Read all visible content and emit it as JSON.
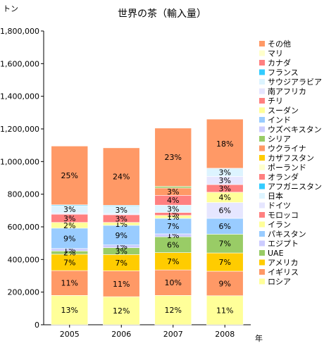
{
  "chart_data": {
    "type": "bar",
    "stacked": true,
    "title": "世界の茶（輸入量）",
    "ylabel": "トン",
    "xlabel": "年",
    "categories": [
      "2005",
      "2006",
      "2007",
      "2008"
    ],
    "ylim": [
      0,
      1800000
    ],
    "yticks": [
      0,
      200000,
      400000,
      600000,
      800000,
      1000000,
      1200000,
      1400000,
      1600000,
      1800000
    ],
    "ytick_labels": [
      "0",
      "200,000",
      "400,000",
      "600,000",
      "800,000",
      "1,000,000",
      "1,200,000",
      "1,400,000",
      "1,600,000",
      "1,800,000"
    ],
    "grid": false,
    "legend_position": "right",
    "series": [
      {
        "name": "ロシア",
        "color": "#FFFF99",
        "values": [
          180000,
          172000,
          180000,
          178000
        ],
        "labels": [
          "13%",
          "12%",
          "12%",
          "11%"
        ]
      },
      {
        "name": "イギリス",
        "color": "#FF9966",
        "values": [
          152000,
          158000,
          156000,
          150000
        ],
        "labels": [
          "11%",
          "11%",
          "10%",
          "9%"
        ]
      },
      {
        "name": "アメリカ",
        "color": "#FFCC00",
        "values": [
          100000,
          100000,
          106000,
          112000
        ],
        "labels": [
          "7%",
          "7%",
          "7%",
          "7%"
        ]
      },
      {
        "name": "UAE",
        "color": "#99CC66",
        "values": [
          20000,
          42000,
          97000,
          115000
        ],
        "labels": [
          "2%",
          "3%",
          "6%",
          "7%"
        ]
      },
      {
        "name": "エジプト",
        "color": "#CCCCFF",
        "values": [
          15000,
          17000,
          18000,
          0
        ],
        "labels": [
          "1%",
          "1%",
          "1%",
          ""
        ]
      },
      {
        "name": "パキスタン",
        "color": "#99CCFF",
        "values": [
          125000,
          120000,
          95000,
          97000
        ],
        "labels": [
          "9%",
          "9%",
          "7%",
          "6%"
        ]
      },
      {
        "name": "イラン",
        "color": "#FFFF99",
        "values": [
          35000,
          18000,
          18000,
          0
        ],
        "labels": [
          "2%",
          "1%",
          "1%",
          ""
        ]
      },
      {
        "name": "モロッコ",
        "color": "#FF8080",
        "values": [
          50000,
          47000,
          18000,
          0
        ],
        "labels": [
          "3%",
          "3%",
          "1%",
          ""
        ]
      },
      {
        "name": "ドイツ",
        "color": "#E6E6FF",
        "values": [
          8000,
          8000,
          0,
          97000
        ],
        "labels": [
          "",
          "",
          "",
          "6%"
        ]
      },
      {
        "name": "日本",
        "color": "#DDF4FF",
        "values": [
          45000,
          45000,
          45000,
          0
        ],
        "labels": [
          "3%",
          "3%",
          "3%",
          ""
        ]
      },
      {
        "name": "アフガニスタン",
        "color": "#33CCFF",
        "values": [
          5000,
          5000,
          0,
          0
        ],
        "labels": [
          "",
          "",
          "",
          ""
        ]
      },
      {
        "name": "オランダ",
        "color": "#FF8080",
        "values": [
          0,
          0,
          60000,
          0
        ],
        "labels": [
          "",
          "",
          "4%",
          ""
        ]
      },
      {
        "name": "ポーランド",
        "color": "#FFFFCC",
        "values": [
          0,
          0,
          0,
          0
        ],
        "labels": [
          "",
          "",
          "",
          ""
        ]
      },
      {
        "name": "カザフスタン",
        "color": "#FFCC00",
        "values": [
          0,
          0,
          0,
          0
        ],
        "labels": [
          "",
          "",
          "",
          ""
        ]
      },
      {
        "name": "ウクライナ",
        "color": "#FF9966",
        "values": [
          0,
          0,
          45000,
          0
        ],
        "labels": [
          "",
          "",
          "3%",
          ""
        ]
      },
      {
        "name": "シリア",
        "color": "#99CC66",
        "values": [
          0,
          0,
          10000,
          0
        ],
        "labels": [
          "",
          "",
          "",
          ""
        ]
      },
      {
        "name": "ウズベキスタン",
        "color": "#CCCCFF",
        "values": [
          0,
          0,
          0,
          0
        ],
        "labels": [
          "",
          "",
          "",
          ""
        ]
      },
      {
        "name": "インド",
        "color": "#99CCFF",
        "values": [
          0,
          0,
          0,
          0
        ],
        "labels": [
          "",
          "",
          "",
          ""
        ]
      },
      {
        "name": "スーダン",
        "color": "#FFFF99",
        "values": [
          0,
          0,
          0,
          63000
        ],
        "labels": [
          "",
          "",
          "",
          "4%"
        ]
      },
      {
        "name": "チリ",
        "color": "#FF8080",
        "values": [
          0,
          0,
          0,
          47000
        ],
        "labels": [
          "",
          "",
          "",
          "3%"
        ]
      },
      {
        "name": "南アフリカ",
        "color": "#E6E6FF",
        "values": [
          0,
          0,
          0,
          50000
        ],
        "labels": [
          "",
          "",
          "",
          "3%"
        ]
      },
      {
        "name": "サウジアラビア",
        "color": "#DDF4FF",
        "values": [
          0,
          0,
          0,
          50000
        ],
        "labels": [
          "",
          "",
          "",
          "3%"
        ]
      },
      {
        "name": "フランス",
        "color": "#33CCFF",
        "values": [
          0,
          0,
          0,
          0
        ],
        "labels": [
          "",
          "",
          "",
          ""
        ]
      },
      {
        "name": "カナダ",
        "color": "#FF8080",
        "values": [
          0,
          0,
          0,
          0
        ],
        "labels": [
          "",
          "",
          "",
          ""
        ]
      },
      {
        "name": "マリ",
        "color": "#FFFFCC",
        "values": [
          0,
          0,
          0,
          0
        ],
        "labels": [
          "",
          "",
          "",
          ""
        ]
      },
      {
        "name": "その他",
        "color": "#FF9966",
        "values": [
          360000,
          352000,
          357000,
          301000
        ],
        "labels": [
          "25%",
          "24%",
          "23%",
          "18%"
        ]
      }
    ]
  }
}
